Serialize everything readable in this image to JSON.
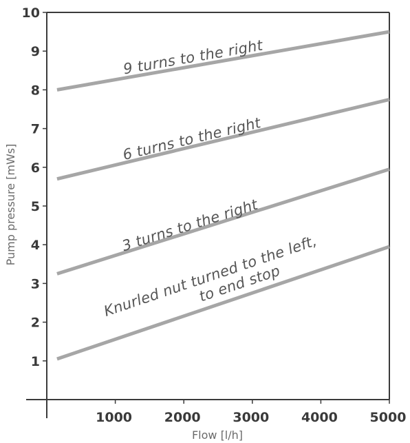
{
  "chart_data": {
    "type": "line",
    "title": "",
    "xlabel": "Flow [l/h]",
    "ylabel": "Pump pressure [mWs]",
    "xlim": [
      0,
      5000
    ],
    "ylim": [
      0,
      10
    ],
    "x_ticks": [
      "1000",
      "2000",
      "3000",
      "4000",
      "5000"
    ],
    "y_ticks": [
      "1",
      "2",
      "3",
      "4",
      "5",
      "6",
      "7",
      "8",
      "9",
      "10"
    ],
    "grid": false,
    "colors": {
      "line": "#a6a6a6",
      "axis": "#3a3a3a",
      "text": "#555555"
    },
    "series": [
      {
        "name": "9 turns to the right",
        "x": [
          150,
          5000
        ],
        "y": [
          8.0,
          9.5
        ]
      },
      {
        "name": "6 turns to the right",
        "x": [
          150,
          5000
        ],
        "y": [
          5.7,
          7.75
        ]
      },
      {
        "name": "3 turns to the right",
        "x": [
          150,
          5000
        ],
        "y": [
          3.25,
          5.95
        ]
      },
      {
        "name": "Knurled nut turned to the left,",
        "name_line2": "to end stop",
        "x": [
          150,
          5000
        ],
        "y": [
          1.05,
          3.95
        ]
      }
    ]
  }
}
